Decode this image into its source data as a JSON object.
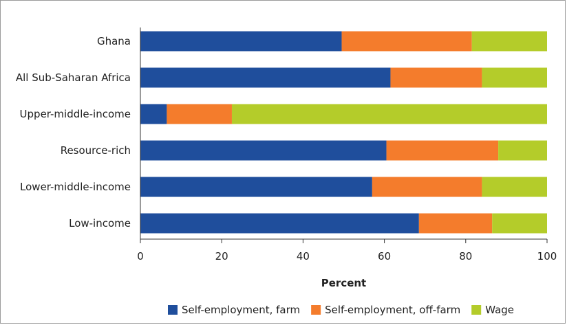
{
  "chart_data": {
    "type": "bar",
    "orientation": "horizontal",
    "stacked": true,
    "categories": [
      "Ghana",
      "All Sub-Saharan Africa",
      "Upper-middle-income",
      "Resource-rich",
      "Lower-middle-income",
      "Low-income"
    ],
    "series": [
      {
        "name": "Self-employment, farm",
        "color": "#1f4e9c",
        "values": [
          49.5,
          61.5,
          6.5,
          60.5,
          57,
          68.5
        ]
      },
      {
        "name": "Self-employment, off-farm",
        "color": "#f47c2c",
        "values": [
          32,
          22.5,
          16,
          27.5,
          27,
          18
        ]
      },
      {
        "name": "Wage",
        "color": "#b4cc2a",
        "values": [
          18.5,
          16,
          77.5,
          12,
          16,
          13.5
        ]
      }
    ],
    "xlabel": "Percent",
    "xlim": [
      0,
      100
    ],
    "xticks": [
      "0",
      "20",
      "40",
      "60",
      "80",
      "100"
    ],
    "grid": false,
    "legend_position": "bottom"
  }
}
